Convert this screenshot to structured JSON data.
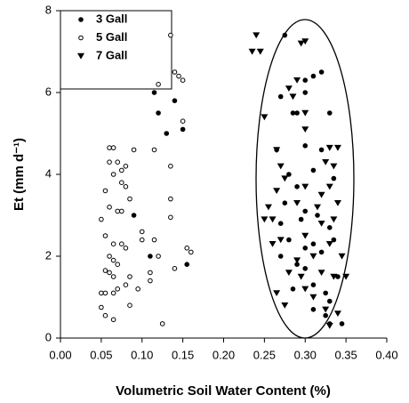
{
  "chart_data": {
    "type": "scatter",
    "x_label": "Volumetric Soil Water Content (%)",
    "y_label": "Et (mm d⁻¹)",
    "xlim": [
      0,
      0.4
    ],
    "ylim": [
      0,
      8
    ],
    "xticks": [
      {
        "value": 0,
        "label": "0.00"
      },
      {
        "value": 0.05,
        "label": "0.05"
      },
      {
        "value": 0.1,
        "label": "0.10"
      },
      {
        "value": 0.15,
        "label": "0.15"
      },
      {
        "value": 0.2,
        "label": "0.20"
      },
      {
        "value": 0.25,
        "label": "0.25"
      },
      {
        "value": 0.3,
        "label": "0.30"
      },
      {
        "value": 0.35,
        "label": "0.35"
      },
      {
        "value": 0.4,
        "label": "0.40"
      }
    ],
    "yticks": [
      0,
      2,
      4,
      6,
      8
    ],
    "legend": "upper left",
    "series": [
      {
        "name": "3 Gall",
        "marker": "filled-circle",
        "color": "#000000",
        "x": [
          0.115,
          0.12,
          0.14,
          0.15,
          0.13,
          0.11,
          0.155,
          0.09,
          0.275,
          0.32,
          0.31,
          0.3,
          0.27,
          0.3,
          0.33,
          0.285,
          0.29,
          0.265,
          0.3,
          0.32,
          0.31,
          0.28,
          0.335,
          0.29,
          0.3,
          0.315,
          0.295,
          0.27,
          0.33,
          0.28,
          0.31,
          0.32,
          0.27,
          0.29,
          0.3,
          0.34,
          0.31,
          0.325,
          0.33,
          0.31,
          0.325,
          0.33,
          0.345,
          0.285,
          0.3,
          0.275,
          0.335
        ],
        "values": [
          6.0,
          5.5,
          5.8,
          5.1,
          5.0,
          2.0,
          1.8,
          3.0,
          7.4,
          6.5,
          6.4,
          6.3,
          5.9,
          6.0,
          5.5,
          5.5,
          5.5,
          4.6,
          4.7,
          4.6,
          4.1,
          4.0,
          3.9,
          3.7,
          3.1,
          3.0,
          2.9,
          2.8,
          2.7,
          2.4,
          2.3,
          2.1,
          2.0,
          1.8,
          1.7,
          1.5,
          1.3,
          1.1,
          0.9,
          0.7,
          0.55,
          0.35,
          0.35,
          1.2,
          2.2,
          3.3,
          2.4
        ]
      },
      {
        "name": "5 Gall",
        "marker": "open-circle",
        "color": "#000000",
        "x": [
          0.135,
          0.14,
          0.145,
          0.15,
          0.12,
          0.15,
          0.115,
          0.135,
          0.06,
          0.065,
          0.06,
          0.07,
          0.075,
          0.08,
          0.09,
          0.065,
          0.055,
          0.075,
          0.08,
          0.085,
          0.135,
          0.06,
          0.07,
          0.075,
          0.05,
          0.055,
          0.065,
          0.075,
          0.08,
          0.135,
          0.1,
          0.115,
          0.12,
          0.155,
          0.16,
          0.14,
          0.06,
          0.065,
          0.07,
          0.055,
          0.06,
          0.065,
          0.085,
          0.11,
          0.11,
          0.05,
          0.055,
          0.065,
          0.07,
          0.08,
          0.095,
          0.05,
          0.055,
          0.065,
          0.085,
          0.125,
          0.1
        ],
        "values": [
          7.4,
          6.5,
          6.4,
          6.3,
          6.2,
          5.3,
          4.6,
          4.2,
          4.65,
          4.65,
          4.3,
          4.3,
          4.1,
          4.2,
          4.6,
          4.0,
          3.6,
          3.8,
          3.7,
          3.4,
          3.4,
          3.2,
          3.1,
          3.1,
          2.9,
          2.5,
          2.3,
          2.3,
          2.2,
          2.95,
          2.4,
          2.4,
          2.0,
          2.2,
          2.1,
          1.7,
          2.0,
          1.9,
          1.8,
          1.65,
          1.6,
          1.5,
          1.5,
          1.6,
          1.4,
          1.1,
          1.1,
          1.1,
          1.2,
          1.3,
          1.2,
          0.75,
          0.55,
          0.45,
          0.8,
          0.35,
          2.6
        ]
      },
      {
        "name": "7 Gall",
        "marker": "triangle-down",
        "color": "#000000",
        "x": [
          0.24,
          0.235,
          0.245,
          0.3,
          0.295,
          0.25,
          0.29,
          0.28,
          0.3,
          0.3,
          0.285,
          0.265,
          0.33,
          0.34,
          0.325,
          0.335,
          0.27,
          0.275,
          0.265,
          0.3,
          0.32,
          0.33,
          0.34,
          0.255,
          0.25,
          0.26,
          0.29,
          0.315,
          0.32,
          0.335,
          0.26,
          0.27,
          0.3,
          0.33,
          0.345,
          0.28,
          0.29,
          0.31,
          0.265,
          0.295,
          0.32,
          0.335,
          0.3,
          0.31,
          0.325,
          0.35,
          0.33,
          0.34,
          0.275
        ],
        "values": [
          7.4,
          7.0,
          7.0,
          7.25,
          7.2,
          5.4,
          6.3,
          6.1,
          5.5,
          5.1,
          5.9,
          4.6,
          4.65,
          4.65,
          4.3,
          4.2,
          4.2,
          3.9,
          3.6,
          3.7,
          3.5,
          3.7,
          3.3,
          3.2,
          2.9,
          2.9,
          3.3,
          3.2,
          2.8,
          2.9,
          2.3,
          2.4,
          2.5,
          2.3,
          2.0,
          1.6,
          1.9,
          2.0,
          1.1,
          1.5,
          1.6,
          1.5,
          1.2,
          1.0,
          0.7,
          1.5,
          0.3,
          0.6,
          0.8
        ]
      }
    ]
  }
}
